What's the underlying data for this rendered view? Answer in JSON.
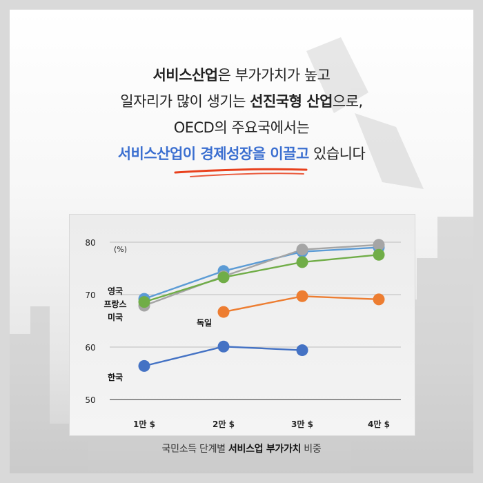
{
  "headline": {
    "line1_bold": "서비스산업",
    "line1_rest": "은 부가가치가 높고",
    "line2_start": "일자리가 많이 생기는 ",
    "line2_bold": "선진국형 산업",
    "line2_end": "으로,",
    "line3": "OECD의 주요국에서는",
    "line4_blue1": "서비스산업이 ",
    "line4_blue2": "경제성장을 이끌고",
    "line4_end": " 있습니다"
  },
  "caption": {
    "prefix": "국민소득 단계별 ",
    "bold": "서비스업 부가가치",
    "suffix": " 비중"
  },
  "colors": {
    "accent_blue": "#3b6fd0",
    "underline_red": "#e8401c",
    "uk": "#5b9bd5",
    "france": "#a5a5a5",
    "usa": "#70ad47",
    "germany": "#ed7d31",
    "korea": "#4472c4"
  },
  "chart_data": {
    "type": "line",
    "categories": [
      "1만 $",
      "2만 $",
      "3만 $",
      "4만 $"
    ],
    "ylabel": "(%)",
    "ylim": [
      50,
      80
    ],
    "yticks": [
      50,
      60,
      70,
      80
    ],
    "grid": true,
    "series": [
      {
        "name": "영국",
        "color": "#5b9bd5",
        "values": [
          69.2,
          74.5,
          78.2,
          79.0
        ]
      },
      {
        "name": "프랑스",
        "color": "#a5a5a5",
        "values": [
          67.9,
          73.5,
          78.6,
          79.5
        ]
      },
      {
        "name": "미국",
        "color": "#70ad47",
        "values": [
          68.6,
          73.3,
          76.2,
          77.6
        ]
      },
      {
        "name": "독일",
        "color": "#ed7d31",
        "values": [
          null,
          66.7,
          69.7,
          69.1
        ]
      },
      {
        "name": "한국",
        "color": "#4472c4",
        "values": [
          56.4,
          60.1,
          59.4,
          null
        ]
      }
    ]
  }
}
